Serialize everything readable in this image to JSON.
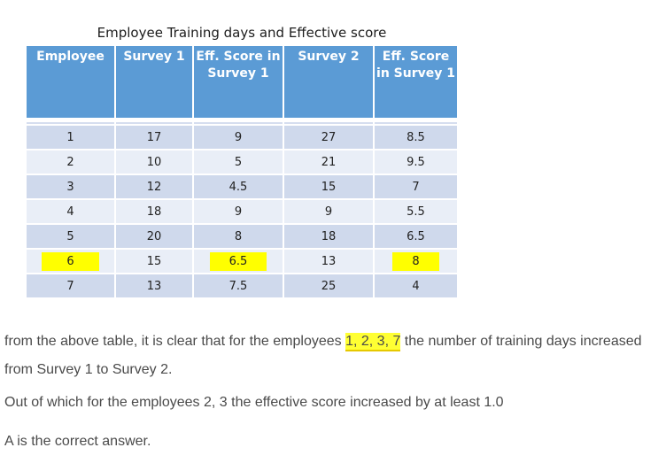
{
  "table": {
    "title": "Employee Training days and Effective score",
    "headers": [
      "Employee",
      "Survey 1",
      "Eff. Score in Survey 1",
      "Survey 2",
      "Eff. Score in Survey 1"
    ],
    "rows": [
      [
        "1",
        "17",
        "9",
        "27",
        "8.5"
      ],
      [
        "2",
        "10",
        "5",
        "21",
        "9.5"
      ],
      [
        "3",
        "12",
        "4.5",
        "15",
        "7"
      ],
      [
        "4",
        "18",
        "9",
        "9",
        "5.5"
      ],
      [
        "5",
        "20",
        "8",
        "18",
        "6.5"
      ],
      [
        "6",
        "15",
        "6.5",
        "13",
        "8"
      ],
      [
        "7",
        "13",
        "7.5",
        "25",
        "4"
      ]
    ]
  },
  "highlight_color": "#ffff00",
  "explanation": {
    "p1_before": "from the above table, it is clear that for the employees ",
    "p1_highlight": "1, 2, 3, 7",
    "p1_after": " the number of training days increased from Survey 1  to Survey 2.",
    "p2": "Out of which for the employees 2, 3 the effective score increased by at least 1.0",
    "p3": "A is the correct answer."
  }
}
